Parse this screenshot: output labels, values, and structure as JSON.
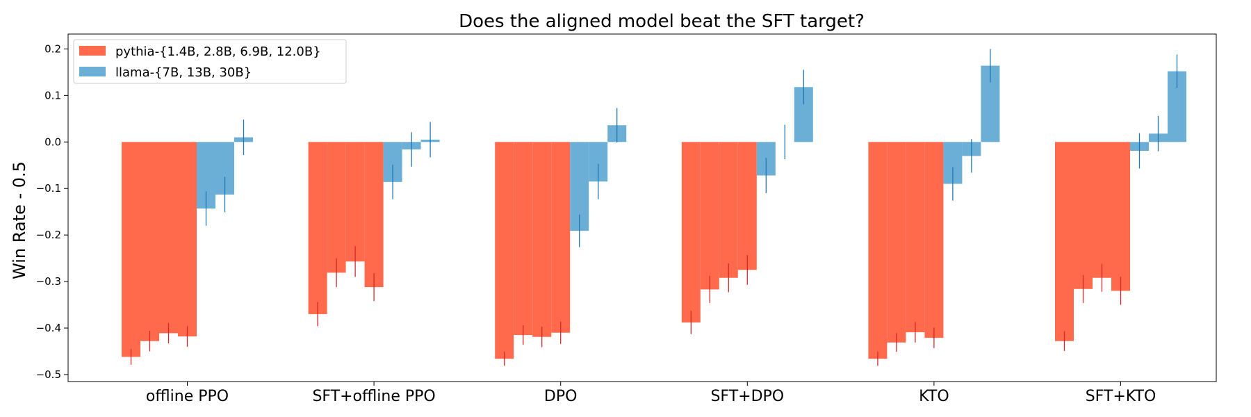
{
  "chart_data": {
    "type": "bar",
    "title": "Does the aligned model beat the SFT target?",
    "xlabel": "",
    "ylabel": "Win Rate - 0.5",
    "ylim": [
      -0.515,
      0.232
    ],
    "yticks": [
      -0.5,
      -0.4,
      -0.3,
      -0.2,
      -0.1,
      0.0,
      0.1,
      0.2
    ],
    "ytick_labels": [
      "−0.5",
      "−0.4",
      "−0.3",
      "−0.2",
      "−0.1",
      "0.0",
      "0.1",
      "0.2"
    ],
    "legend_placement": "top-left",
    "grid": false,
    "categories": [
      "offline PPO",
      "SFT+offline PPO",
      "DPO",
      "SFT+DPO",
      "KTO",
      "SFT+KTO"
    ],
    "series": [
      {
        "name": "pythia-{1.4B, 2.8B, 6.9B, 12.0B}",
        "color": "#ff6a4d",
        "error_color": "#d62728",
        "values": [
          [
            -0.462,
            -0.428,
            -0.411,
            -0.418
          ],
          [
            -0.37,
            -0.281,
            -0.257,
            -0.312
          ],
          [
            -0.466,
            -0.415,
            -0.419,
            -0.41
          ],
          [
            -0.388,
            -0.317,
            -0.292,
            -0.275
          ],
          [
            -0.466,
            -0.431,
            -0.409,
            -0.421
          ],
          [
            -0.428,
            -0.316,
            -0.292,
            -0.32
          ]
        ],
        "errors": [
          [
            0.017,
            0.022,
            0.022,
            0.022
          ],
          [
            0.026,
            0.031,
            0.033,
            0.03
          ],
          [
            0.015,
            0.021,
            0.022,
            0.024
          ],
          [
            0.025,
            0.029,
            0.031,
            0.032
          ],
          [
            0.015,
            0.02,
            0.022,
            0.022
          ],
          [
            0.021,
            0.03,
            0.03,
            0.03
          ]
        ]
      },
      {
        "name": "llama-{7B, 13B, 30B}",
        "color": "#6baed6",
        "error_color": "#1f77b4",
        "values": [
          [
            -0.143,
            -0.113,
            0.01
          ],
          [
            -0.086,
            -0.016,
            0.005
          ],
          [
            -0.191,
            -0.085,
            0.036
          ],
          [
            -0.072,
            0.0,
            0.118
          ],
          [
            -0.09,
            -0.03,
            0.164
          ],
          [
            -0.019,
            0.018,
            0.152
          ]
        ],
        "errors": [
          [
            0.037,
            0.038,
            0.038
          ],
          [
            0.037,
            0.037,
            0.038
          ],
          [
            0.035,
            0.038,
            0.037
          ],
          [
            0.038,
            0.037,
            0.037
          ],
          [
            0.036,
            0.036,
            0.036
          ],
          [
            0.038,
            0.038,
            0.036
          ]
        ]
      }
    ]
  }
}
